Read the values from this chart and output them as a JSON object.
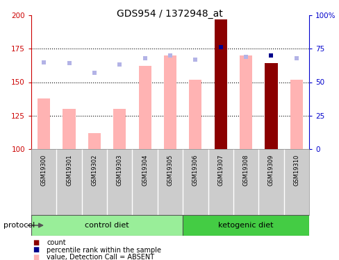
{
  "title": "GDS954 / 1372948_at",
  "samples": [
    "GSM19300",
    "GSM19301",
    "GSM19302",
    "GSM19303",
    "GSM19304",
    "GSM19305",
    "GSM19306",
    "GSM19307",
    "GSM19308",
    "GSM19309",
    "GSM19310"
  ],
  "value_bars": [
    138,
    130,
    112,
    130,
    162,
    170,
    152,
    197,
    170,
    164,
    152
  ],
  "rank_dots": [
    65,
    64,
    57,
    63,
    68,
    70,
    67,
    76,
    69,
    70,
    68
  ],
  "is_count": [
    false,
    false,
    false,
    false,
    false,
    false,
    false,
    true,
    false,
    true,
    false
  ],
  "ylim_left": [
    100,
    200
  ],
  "ylim_right": [
    0,
    100
  ],
  "yticks_left": [
    100,
    125,
    150,
    175,
    200
  ],
  "yticks_right": [
    0,
    25,
    50,
    75,
    100
  ],
  "control_diet_indices": [
    0,
    1,
    2,
    3,
    4,
    5
  ],
  "ketogenic_diet_indices": [
    6,
    7,
    8,
    9,
    10
  ],
  "control_label": "control diet",
  "ketogenic_label": "ketogenic diet",
  "protocol_label": "protocol",
  "bar_color_absent": "#ffb3b3",
  "bar_color_count": "#8b0000",
  "dot_color_absent": "#b3b3e6",
  "dot_color_count": "#00008b",
  "left_axis_color": "#cc0000",
  "right_axis_color": "#0000cc",
  "bg_plot": "#ffffff",
  "bg_sample": "#cccccc",
  "bg_control": "#99ee99",
  "bg_ketogenic": "#44cc44",
  "legend_items": [
    {
      "color": "#8b0000",
      "label": "count"
    },
    {
      "color": "#00008b",
      "label": "percentile rank within the sample"
    },
    {
      "color": "#ffb3b3",
      "label": "value, Detection Call = ABSENT"
    },
    {
      "color": "#b3b3e6",
      "label": "rank, Detection Call = ABSENT"
    }
  ]
}
